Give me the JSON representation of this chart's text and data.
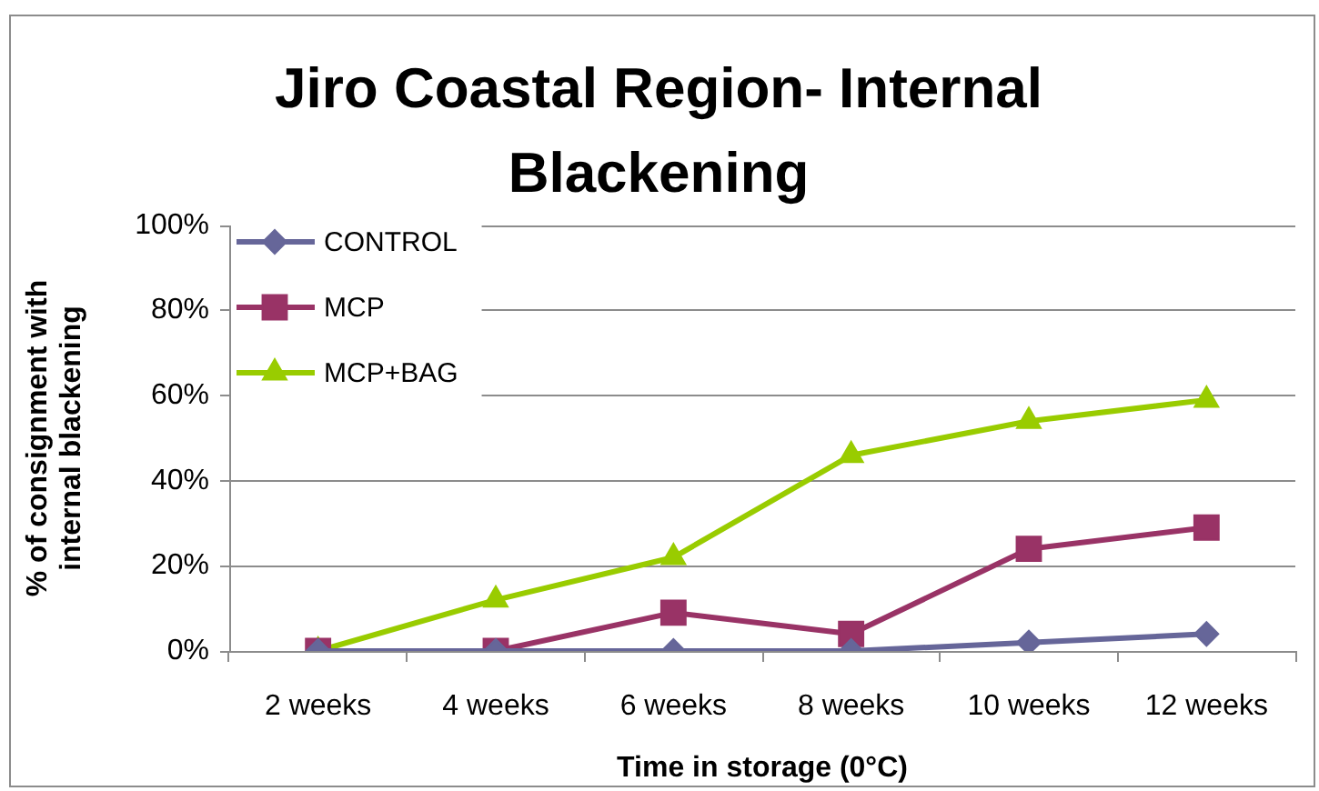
{
  "chart_data": {
    "type": "line",
    "title": "Jiro Coastal Region- Internal Blackening",
    "xlabel": "Time in storage (0°C)",
    "ylabel": "% of consignment with internal blackening",
    "categories": [
      "2 weeks",
      "4 weeks",
      "6 weeks",
      "8 weeks",
      "10 weeks",
      "12 weeks"
    ],
    "series": [
      {
        "name": "CONTROL",
        "color": "#666699",
        "marker": "diamond",
        "values": [
          0,
          0,
          0,
          0,
          2,
          4
        ]
      },
      {
        "name": "MCP",
        "color": "#993366",
        "marker": "square",
        "values": [
          0,
          0,
          9,
          4,
          24,
          29
        ]
      },
      {
        "name": "MCP+BAG",
        "color": "#99cc00",
        "marker": "triangle",
        "values": [
          0,
          12,
          22,
          46,
          54,
          59
        ]
      }
    ],
    "ylim": [
      0,
      100
    ],
    "yticks": [
      {
        "value": 0,
        "label": "0%"
      },
      {
        "value": 20,
        "label": "20%"
      },
      {
        "value": 40,
        "label": "40%"
      },
      {
        "value": 60,
        "label": "60%"
      },
      {
        "value": 80,
        "label": "80%"
      },
      {
        "value": 100,
        "label": "100%"
      }
    ],
    "grid": "y",
    "legend": "top left",
    "line_style": "solid"
  }
}
